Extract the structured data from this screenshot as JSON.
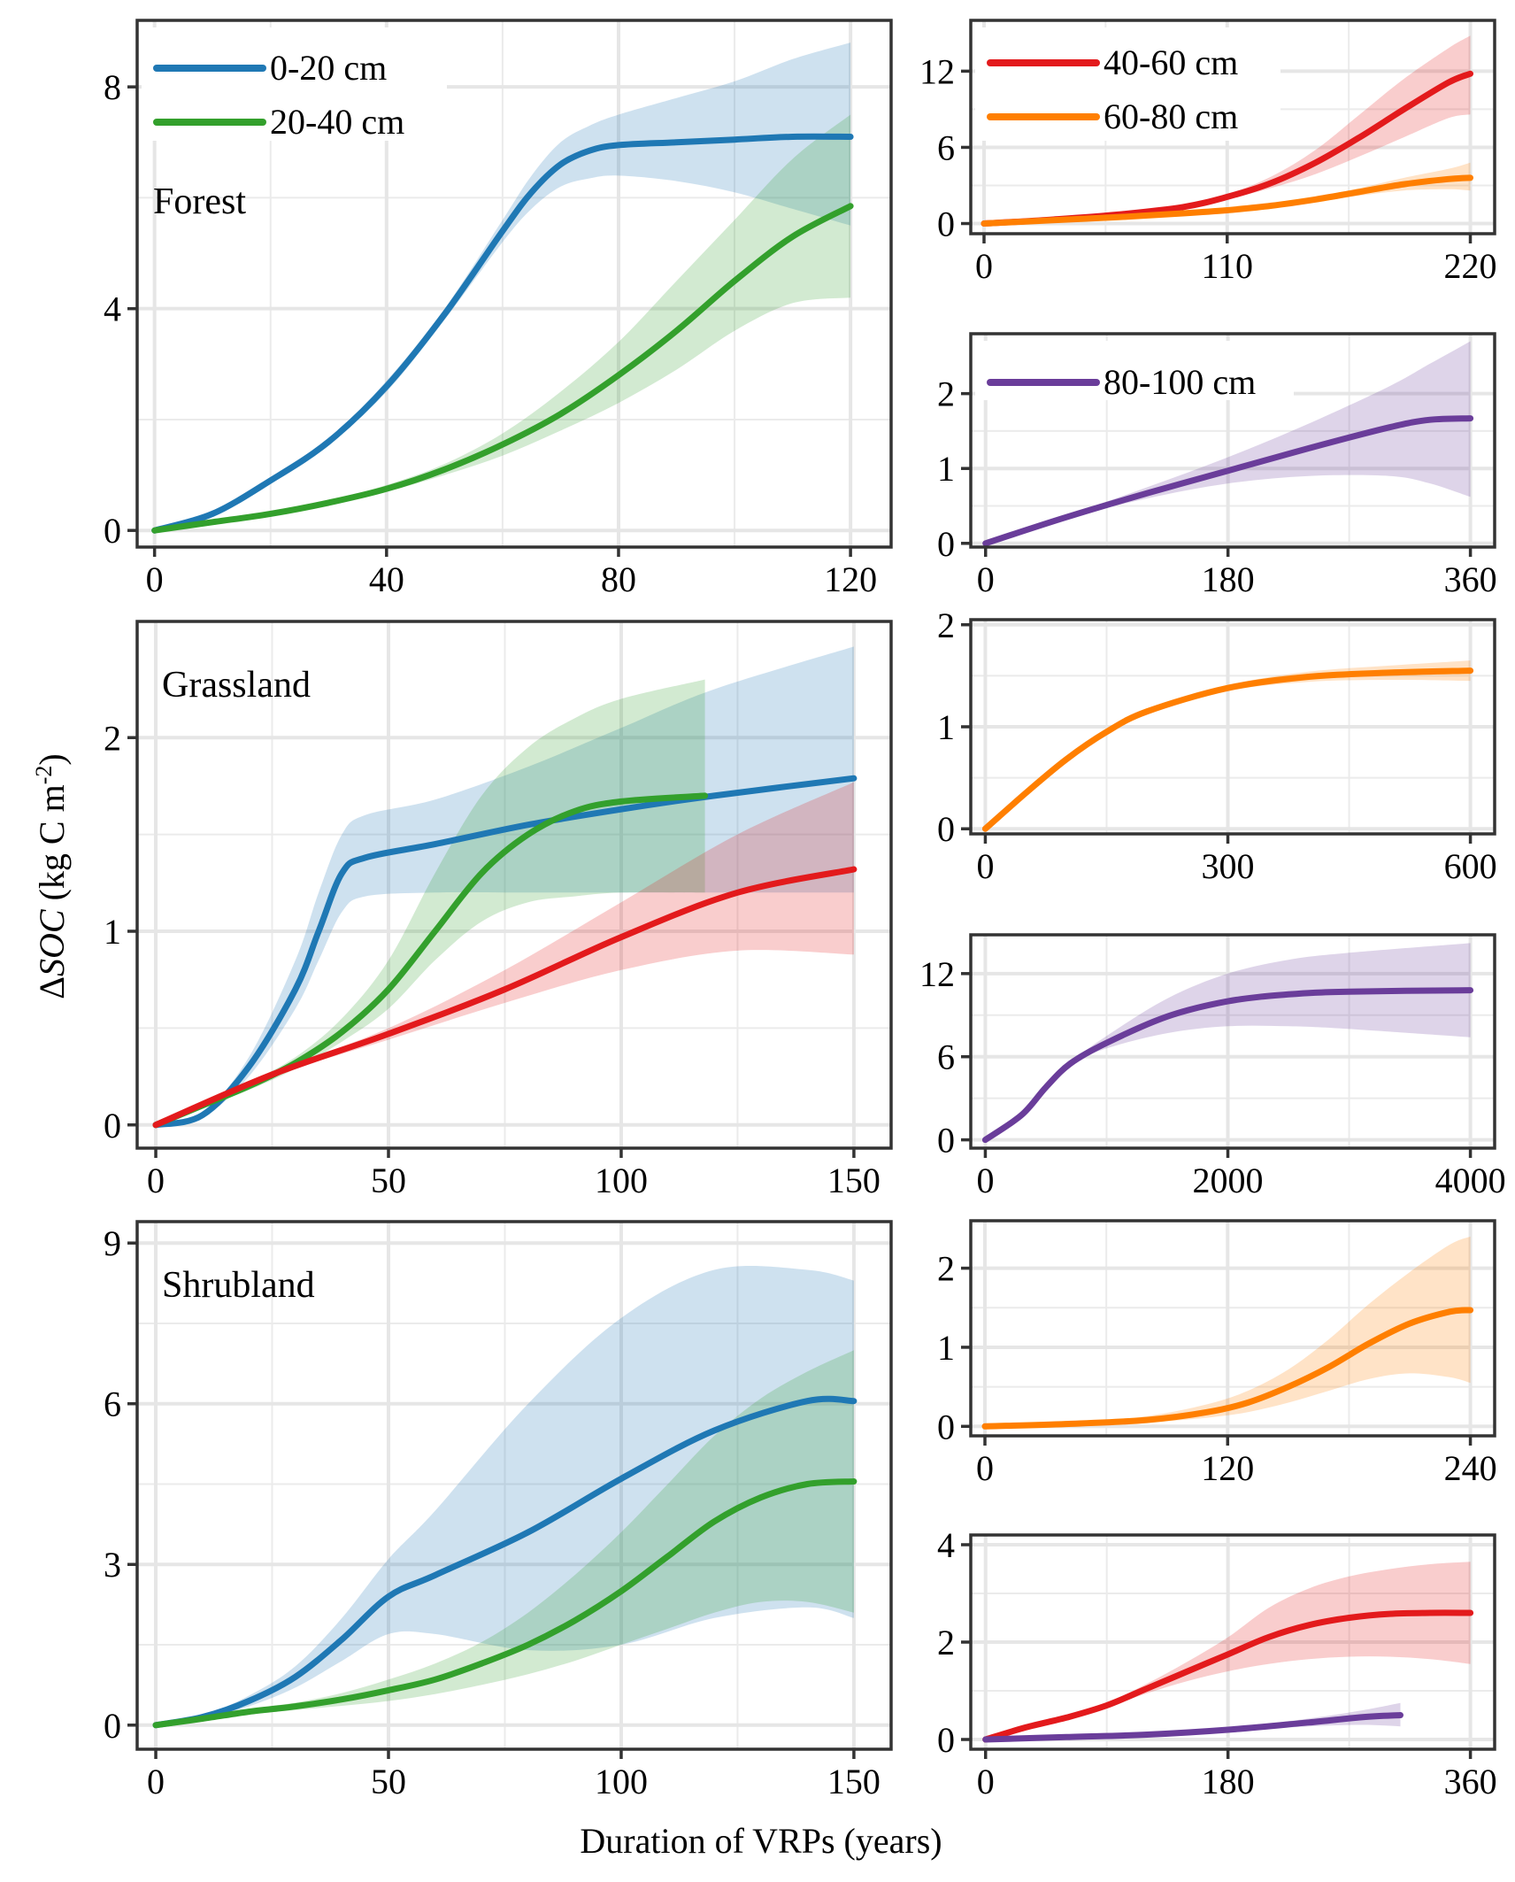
{
  "figure": {
    "xlabel": "Duration of VRPs (years)",
    "ylabel_prefix": "Δ",
    "ylabel_italic": "SOC",
    "ylabel_units": " (kg C m",
    "ylabel_sup": "-2",
    "ylabel_close": ")"
  },
  "colors": {
    "0-20 cm": "#1f78b4",
    "20-40 cm": "#33a02c",
    "40-60 cm": "#e31a1c",
    "60-80 cm": "#ff7f00",
    "80-100 cm": "#6a3d9a"
  },
  "chart_data": [
    {
      "id": "forest-top",
      "type": "line",
      "panel_label": "Forest",
      "xlim": [
        -3,
        127
      ],
      "xticks": [
        0,
        40,
        80,
        120
      ],
      "xminor": [
        20,
        60,
        100
      ],
      "ylim": [
        -0.3,
        9.2
      ],
      "yticks": [
        0,
        4,
        8
      ],
      "yminor": [
        2,
        6
      ],
      "legend": [
        "0-20 cm",
        "20-40 cm"
      ],
      "series": [
        {
          "name": "0-20 cm",
          "x": [
            0,
            10,
            20,
            30,
            40,
            50,
            60,
            65,
            70,
            75,
            80,
            90,
            100,
            110,
            120
          ],
          "y": [
            0,
            0.3,
            0.9,
            1.6,
            2.6,
            3.9,
            5.4,
            6.1,
            6.6,
            6.85,
            6.95,
            7.0,
            7.05,
            7.1,
            7.1
          ],
          "lo": [
            0,
            0.28,
            0.85,
            1.55,
            2.5,
            3.8,
            5.2,
            5.8,
            6.2,
            6.35,
            6.4,
            6.3,
            6.1,
            5.8,
            5.5
          ],
          "hi": [
            0,
            0.32,
            0.95,
            1.65,
            2.7,
            4.0,
            5.6,
            6.4,
            7.0,
            7.3,
            7.5,
            7.8,
            8.1,
            8.5,
            8.8
          ]
        },
        {
          "name": "20-40 cm",
          "x": [
            0,
            10,
            20,
            30,
            40,
            50,
            60,
            70,
            80,
            90,
            100,
            110,
            120
          ],
          "y": [
            0,
            0.15,
            0.3,
            0.5,
            0.75,
            1.1,
            1.55,
            2.1,
            2.8,
            3.6,
            4.5,
            5.3,
            5.85
          ],
          "lo": [
            0,
            0.14,
            0.28,
            0.47,
            0.7,
            1.0,
            1.35,
            1.8,
            2.3,
            2.9,
            3.6,
            4.1,
            4.2
          ],
          "hi": [
            0,
            0.16,
            0.32,
            0.53,
            0.82,
            1.2,
            1.75,
            2.5,
            3.4,
            4.5,
            5.6,
            6.7,
            7.5
          ]
        }
      ]
    },
    {
      "id": "forest-deep1",
      "type": "line",
      "xlim": [
        -6,
        231
      ],
      "xticks": [
        0,
        110,
        220
      ],
      "xminor": [
        55,
        165
      ],
      "ylim": [
        -0.8,
        16
      ],
      "yticks": [
        0,
        6,
        12
      ],
      "yminor": [
        3,
        9
      ],
      "legend": [
        "40-60 cm",
        "60-80 cm"
      ],
      "series": [
        {
          "name": "40-60 cm",
          "x": [
            0,
            30,
            60,
            90,
            110,
            130,
            150,
            170,
            190,
            210,
            220
          ],
          "y": [
            0,
            0.3,
            0.7,
            1.3,
            2.1,
            3.2,
            4.8,
            6.8,
            9.0,
            11.1,
            11.8
          ],
          "lo": [
            0,
            0.28,
            0.65,
            1.2,
            1.9,
            2.8,
            3.9,
            5.3,
            6.8,
            8.3,
            8.6
          ],
          "hi": [
            0,
            0.32,
            0.75,
            1.4,
            2.3,
            3.7,
            5.8,
            8.6,
            11.4,
            13.8,
            14.8
          ]
        },
        {
          "name": "60-80 cm",
          "x": [
            0,
            30,
            60,
            90,
            110,
            130,
            150,
            170,
            190,
            210,
            220
          ],
          "y": [
            0,
            0.25,
            0.5,
            0.8,
            1.05,
            1.4,
            1.9,
            2.5,
            3.1,
            3.5,
            3.6
          ],
          "lo": [
            0,
            0.24,
            0.47,
            0.75,
            0.98,
            1.3,
            1.7,
            2.2,
            2.6,
            2.7,
            2.6
          ],
          "hi": [
            0,
            0.26,
            0.53,
            0.85,
            1.12,
            1.5,
            2.1,
            2.8,
            3.6,
            4.3,
            4.8
          ]
        }
      ]
    },
    {
      "id": "forest-deep2",
      "type": "line",
      "xlim": [
        -11,
        378
      ],
      "xticks": [
        0,
        180,
        360
      ],
      "xminor": [
        90,
        270
      ],
      "ylim": [
        -0.05,
        2.8
      ],
      "yticks": [
        0,
        1,
        2
      ],
      "yminor": [
        0.5,
        1.5
      ],
      "legend": [
        "80-100 cm"
      ],
      "series": [
        {
          "name": "80-100 cm",
          "x": [
            0,
            60,
            120,
            180,
            240,
            300,
            330,
            360
          ],
          "y": [
            0,
            0.35,
            0.67,
            0.97,
            1.27,
            1.55,
            1.65,
            1.67
          ],
          "lo": [
            0,
            0.33,
            0.6,
            0.8,
            0.9,
            0.9,
            0.8,
            0.62
          ],
          "hi": [
            0,
            0.37,
            0.75,
            1.15,
            1.6,
            2.1,
            2.4,
            2.7
          ]
        }
      ]
    },
    {
      "id": "grassland-top",
      "type": "line",
      "panel_label": "Grassland",
      "xlim": [
        -4,
        158
      ],
      "xticks": [
        0,
        50,
        100,
        150
      ],
      "xminor": [
        25,
        75,
        125
      ],
      "ylim": [
        -0.12,
        2.6
      ],
      "yticks": [
        0,
        1,
        2
      ],
      "yminor": [
        0.5,
        1.5
      ],
      "series": [
        {
          "name": "0-20 cm",
          "x": [
            0,
            10,
            20,
            30,
            35,
            40,
            45,
            60,
            80,
            100,
            120,
            150
          ],
          "y": [
            0,
            0.05,
            0.3,
            0.7,
            1.0,
            1.3,
            1.38,
            1.45,
            1.55,
            1.63,
            1.7,
            1.79
          ],
          "lo": [
            0,
            0.04,
            0.25,
            0.6,
            0.85,
            1.1,
            1.18,
            1.2,
            1.2,
            1.2,
            1.2,
            1.2
          ],
          "hi": [
            0,
            0.06,
            0.35,
            0.85,
            1.2,
            1.5,
            1.6,
            1.68,
            1.85,
            2.05,
            2.25,
            2.47
          ]
        },
        {
          "name": "20-40 cm",
          "x": [
            0,
            10,
            20,
            30,
            40,
            50,
            60,
            70,
            80,
            90,
            100,
            118
          ],
          "y": [
            0,
            0.1,
            0.2,
            0.32,
            0.48,
            0.7,
            1.0,
            1.3,
            1.5,
            1.62,
            1.67,
            1.7
          ],
          "lo": [
            0,
            0.09,
            0.18,
            0.29,
            0.43,
            0.6,
            0.85,
            1.05,
            1.15,
            1.18,
            1.2,
            1.2
          ],
          "hi": [
            0,
            0.11,
            0.22,
            0.35,
            0.55,
            0.85,
            1.3,
            1.7,
            1.95,
            2.1,
            2.2,
            2.3
          ]
        },
        {
          "name": "40-60 cm",
          "x": [
            0,
            25,
            50,
            75,
            100,
            125,
            150
          ],
          "y": [
            0,
            0.26,
            0.47,
            0.7,
            0.97,
            1.2,
            1.32
          ],
          "lo": [
            0,
            0.25,
            0.44,
            0.63,
            0.8,
            0.9,
            0.88
          ],
          "hi": [
            0,
            0.27,
            0.5,
            0.8,
            1.15,
            1.5,
            1.77
          ]
        }
      ]
    },
    {
      "id": "grassland-deep1",
      "type": "line",
      "xlim": [
        -18,
        630
      ],
      "xticks": [
        0,
        300,
        600
      ],
      "xminor": [
        150,
        450
      ],
      "ylim": [
        -0.05,
        2.05
      ],
      "yticks": [
        0,
        1,
        2
      ],
      "yminor": [
        0.5,
        1.5
      ],
      "series": [
        {
          "name": "60-80 cm",
          "x": [
            0,
            50,
            100,
            150,
            200,
            300,
            400,
            500,
            600
          ],
          "y": [
            0,
            0.35,
            0.68,
            0.95,
            1.15,
            1.38,
            1.49,
            1.53,
            1.55
          ],
          "lo": [
            0,
            0.34,
            0.66,
            0.93,
            1.12,
            1.35,
            1.44,
            1.46,
            1.45
          ],
          "hi": [
            0,
            0.36,
            0.7,
            0.97,
            1.18,
            1.41,
            1.54,
            1.6,
            1.65
          ]
        }
      ]
    },
    {
      "id": "grassland-deep2",
      "type": "line",
      "xlim": [
        -120,
        4200
      ],
      "xticks": [
        0,
        2000,
        4000
      ],
      "xminor": [
        1000,
        3000
      ],
      "ylim": [
        -0.6,
        14.8
      ],
      "yticks": [
        0,
        6,
        12
      ],
      "yminor": [
        3,
        9
      ],
      "series": [
        {
          "name": "80-100 cm",
          "x": [
            0,
            300,
            500,
            700,
            1000,
            1500,
            2000,
            2500,
            3000,
            4000
          ],
          "y": [
            0,
            1.8,
            3.8,
            5.5,
            7.0,
            8.9,
            10.0,
            10.5,
            10.7,
            10.8
          ],
          "lo": [
            0,
            1.75,
            3.7,
            5.4,
            6.6,
            7.7,
            8.2,
            8.2,
            8.0,
            7.4
          ],
          "hi": [
            0,
            1.85,
            3.9,
            5.6,
            7.5,
            10.2,
            12.0,
            13.0,
            13.5,
            14.2
          ]
        }
      ]
    },
    {
      "id": "shrubland-top",
      "type": "line",
      "panel_label": "Shrubland",
      "xlim": [
        -4,
        158
      ],
      "xticks": [
        0,
        50,
        100,
        150
      ],
      "xminor": [
        25,
        75,
        125
      ],
      "ylim": [
        -0.45,
        9.4
      ],
      "yticks": [
        0,
        3,
        6,
        9
      ],
      "yminor": [
        1.5,
        4.5,
        7.5
      ],
      "series": [
        {
          "name": "0-20 cm",
          "x": [
            0,
            10,
            20,
            30,
            40,
            50,
            60,
            80,
            100,
            120,
            140,
            150
          ],
          "y": [
            0,
            0.15,
            0.45,
            0.9,
            1.6,
            2.4,
            2.8,
            3.6,
            4.6,
            5.5,
            6.05,
            6.05
          ],
          "lo": [
            0,
            0.12,
            0.35,
            0.7,
            1.2,
            1.7,
            1.7,
            1.4,
            1.5,
            2.0,
            2.2,
            2.0
          ],
          "hi": [
            0,
            0.18,
            0.55,
            1.1,
            2.0,
            3.1,
            4.0,
            6.0,
            7.6,
            8.5,
            8.5,
            8.3
          ]
        },
        {
          "name": "20-40 cm",
          "x": [
            0,
            10,
            20,
            30,
            40,
            50,
            60,
            70,
            80,
            90,
            100,
            110,
            120,
            130,
            140,
            150
          ],
          "y": [
            0,
            0.12,
            0.25,
            0.35,
            0.48,
            0.65,
            0.85,
            1.15,
            1.5,
            1.95,
            2.5,
            3.15,
            3.8,
            4.25,
            4.5,
            4.55
          ],
          "lo": [
            0,
            0.1,
            0.2,
            0.28,
            0.36,
            0.45,
            0.58,
            0.75,
            0.95,
            1.2,
            1.5,
            1.8,
            2.1,
            2.3,
            2.3,
            2.1
          ],
          "hi": [
            0,
            0.14,
            0.3,
            0.42,
            0.6,
            0.85,
            1.15,
            1.55,
            2.1,
            2.8,
            3.6,
            4.5,
            5.4,
            6.1,
            6.6,
            7.0
          ]
        }
      ]
    },
    {
      "id": "shrubland-deep1",
      "type": "line",
      "xlim": [
        -7,
        252
      ],
      "xticks": [
        0,
        120,
        240
      ],
      "xminor": [
        60,
        180
      ],
      "ylim": [
        -0.12,
        2.6
      ],
      "yticks": [
        0,
        1,
        2
      ],
      "yminor": [
        0.5,
        1.5
      ],
      "series": [
        {
          "name": "60-80 cm",
          "x": [
            0,
            40,
            80,
            110,
            130,
            150,
            170,
            190,
            210,
            230,
            240
          ],
          "y": [
            0,
            0.03,
            0.08,
            0.18,
            0.3,
            0.5,
            0.75,
            1.05,
            1.3,
            1.45,
            1.47
          ],
          "lo": [
            0,
            0.02,
            0.05,
            0.11,
            0.18,
            0.3,
            0.45,
            0.6,
            0.67,
            0.62,
            0.55
          ],
          "hi": [
            0,
            0.04,
            0.13,
            0.28,
            0.45,
            0.72,
            1.1,
            1.55,
            1.95,
            2.3,
            2.4
          ]
        }
      ]
    },
    {
      "id": "shrubland-deep2",
      "type": "line",
      "xlim": [
        -11,
        378
      ],
      "xticks": [
        0,
        180,
        360
      ],
      "xminor": [
        90,
        270
      ],
      "ylim": [
        -0.2,
        4.2
      ],
      "yticks": [
        0,
        2,
        4
      ],
      "yminor": [
        1,
        3
      ],
      "series": [
        {
          "name": "40-60 cm",
          "x": [
            0,
            30,
            60,
            90,
            120,
            150,
            180,
            210,
            240,
            270,
            300,
            330,
            360
          ],
          "y": [
            0,
            0.25,
            0.45,
            0.7,
            1.05,
            1.4,
            1.75,
            2.1,
            2.35,
            2.5,
            2.58,
            2.6,
            2.6
          ],
          "lo": [
            0,
            0.24,
            0.43,
            0.66,
            0.95,
            1.2,
            1.4,
            1.55,
            1.65,
            1.7,
            1.7,
            1.65,
            1.55
          ],
          "hi": [
            0,
            0.26,
            0.47,
            0.75,
            1.15,
            1.6,
            2.1,
            2.7,
            3.1,
            3.35,
            3.5,
            3.6,
            3.65
          ]
        },
        {
          "name": "80-100 cm",
          "x": [
            0,
            60,
            120,
            180,
            240,
            280,
            308
          ],
          "y": [
            0,
            0.05,
            0.1,
            0.2,
            0.35,
            0.46,
            0.5
          ],
          "lo": [
            0,
            0.045,
            0.09,
            0.17,
            0.27,
            0.3,
            0.27
          ],
          "hi": [
            0,
            0.055,
            0.11,
            0.23,
            0.43,
            0.6,
            0.75
          ]
        }
      ]
    }
  ]
}
